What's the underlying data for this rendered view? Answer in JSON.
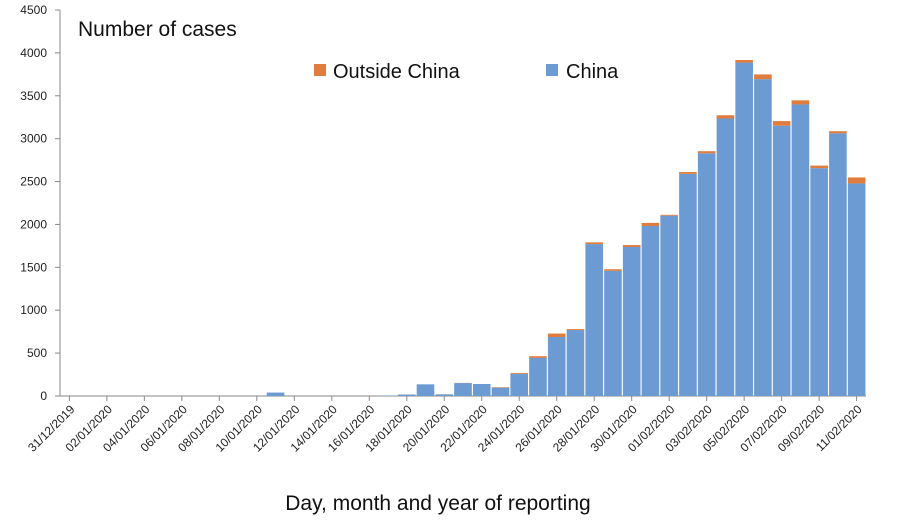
{
  "chart_data": {
    "type": "bar",
    "stacked": true,
    "ylabel": "Number of cases",
    "xlabel": "Day, month and year of reporting",
    "ylim": [
      0,
      4500
    ],
    "yticks": [
      0,
      500,
      1000,
      1500,
      2000,
      2500,
      3000,
      3500,
      4000,
      4500
    ],
    "grid": false,
    "legend_position": "top-center",
    "categories": [
      "31/12/2019",
      "01/01/2020",
      "02/01/2020",
      "03/01/2020",
      "04/01/2020",
      "05/01/2020",
      "06/01/2020",
      "07/01/2020",
      "08/01/2020",
      "09/01/2020",
      "10/01/2020",
      "11/01/2020",
      "12/01/2020",
      "13/01/2020",
      "14/01/2020",
      "15/01/2020",
      "16/01/2020",
      "17/01/2020",
      "18/01/2020",
      "19/01/2020",
      "20/01/2020",
      "21/01/2020",
      "22/01/2020",
      "23/01/2020",
      "24/01/2020",
      "25/01/2020",
      "26/01/2020",
      "27/01/2020",
      "28/01/2020",
      "29/01/2020",
      "30/01/2020",
      "31/01/2020",
      "01/02/2020",
      "02/02/2020",
      "03/02/2020",
      "04/02/2020",
      "05/02/2020",
      "06/02/2020",
      "07/02/2020",
      "08/02/2020",
      "09/02/2020",
      "10/02/2020",
      "11/02/2020"
    ],
    "tick_labels": [
      "31/12/2019",
      "02/01/2020",
      "04/01/2020",
      "06/01/2020",
      "08/01/2020",
      "10/01/2020",
      "12/01/2020",
      "14/01/2020",
      "16/01/2020",
      "18/01/2020",
      "20/01/2020",
      "22/01/2020",
      "24/01/2020",
      "26/01/2020",
      "28/01/2020",
      "30/01/2020",
      "01/02/2020",
      "03/02/2020",
      "05/02/2020",
      "07/02/2020",
      "09/02/2020",
      "11/02/2020"
    ],
    "series": [
      {
        "name": "China",
        "color": "#6b9bd2",
        "values": [
          0,
          0,
          0,
          0,
          0,
          0,
          0,
          0,
          0,
          0,
          0,
          40,
          0,
          0,
          0,
          0,
          0,
          5,
          17,
          136,
          19,
          151,
          140,
          97,
          259,
          444,
          688,
          769,
          1771,
          1459,
          1737,
          1982,
          2102,
          2590,
          2829,
          3235,
          3887,
          3694,
          3151,
          3399,
          2656,
          3062,
          2478
        ]
      },
      {
        "name": "Outside China",
        "color": "#e07c3e",
        "values": [
          0,
          0,
          0,
          0,
          0,
          0,
          0,
          0,
          0,
          0,
          0,
          0,
          0,
          0,
          0,
          0,
          0,
          0,
          1,
          0,
          1,
          2,
          0,
          6,
          10,
          20,
          40,
          11,
          20,
          19,
          23,
          36,
          10,
          21,
          25,
          38,
          30,
          55,
          54,
          48,
          30,
          25,
          70
        ]
      }
    ]
  }
}
